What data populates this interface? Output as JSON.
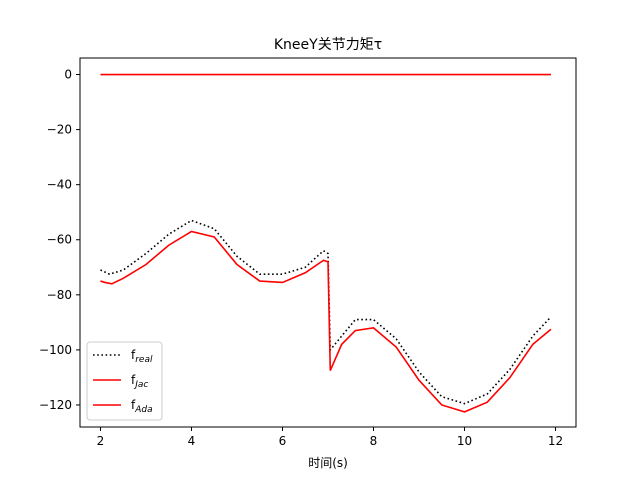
{
  "chart_data": {
    "type": "line",
    "title": "KneeY关节力矩τ",
    "xlabel": "时间(s)",
    "ylabel": "",
    "xlim": [
      1.55,
      12.45
    ],
    "ylim": [
      -128,
      6
    ],
    "xticks": [
      2,
      4,
      6,
      8,
      10,
      12
    ],
    "yticks": [
      0,
      -20,
      -40,
      -60,
      -80,
      -100,
      -120
    ],
    "xtick_labels": [
      "2",
      "4",
      "6",
      "8",
      "10",
      "12"
    ],
    "ytick_labels": [
      "0",
      "−20",
      "−40",
      "−60",
      "−80",
      "−100",
      "−120"
    ],
    "grid": false,
    "legend_position": "lower-left",
    "series": [
      {
        "name": "f",
        "name_sub": "real",
        "color": "#000000",
        "style": "dotted",
        "x": [
          2.0,
          2.2,
          2.5,
          3.0,
          3.5,
          4.0,
          4.5,
          5.0,
          5.5,
          6.0,
          6.5,
          6.9,
          7.0,
          7.05,
          7.3,
          7.6,
          8.0,
          8.5,
          9.0,
          9.5,
          10.0,
          10.5,
          11.0,
          11.5,
          11.9
        ],
        "y": [
          -71,
          -72.5,
          -71,
          -65,
          -58,
          -53,
          -56,
          -66,
          -72.5,
          -72.5,
          -70,
          -64,
          -65,
          -100,
          -95,
          -89,
          -89,
          -96,
          -108,
          -117,
          -119.5,
          -116,
          -107,
          -95,
          -88
        ]
      },
      {
        "name": "f",
        "name_sub": "Jac",
        "color": "#ff0000",
        "style": "solid",
        "x": [
          2.0,
          11.9
        ],
        "y": [
          0,
          0
        ]
      },
      {
        "name": "f",
        "name_sub": "Ada",
        "color": "#ff0000",
        "style": "solid",
        "x": [
          2.0,
          2.1,
          2.25,
          2.5,
          3.0,
          3.5,
          4.0,
          4.5,
          5.0,
          5.5,
          6.0,
          6.5,
          6.9,
          7.0,
          7.05,
          7.3,
          7.6,
          8.0,
          8.5,
          9.0,
          9.5,
          10.0,
          10.5,
          11.0,
          11.5,
          11.9
        ],
        "y": [
          -75,
          -75.5,
          -76,
          -74,
          -69,
          -62,
          -57,
          -59,
          -69,
          -75,
          -75.5,
          -72,
          -67.5,
          -68,
          -107.5,
          -98,
          -93,
          -92,
          -99,
          -111,
          -120,
          -122.5,
          -119,
          -110,
          -98,
          -92.5
        ]
      }
    ]
  }
}
